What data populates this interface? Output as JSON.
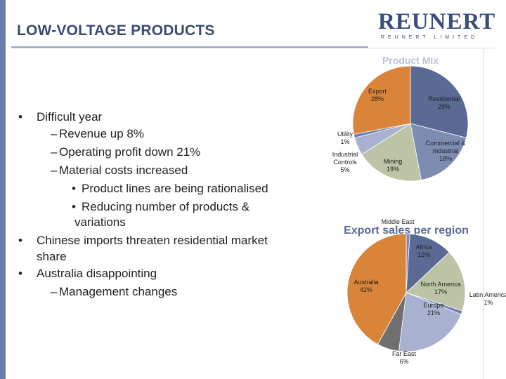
{
  "header": {
    "title": "LOW-VOLTAGE PRODUCTS",
    "logo_main": "REUNERT",
    "logo_sub": "REUNERT LIMITED"
  },
  "bullets": {
    "b1": "Difficult year",
    "b1_1": "Revenue up 8%",
    "b1_2": "Operating profit down 21%",
    "b1_3": "Material costs increased",
    "b1_3_1": "Product lines are being rationalised",
    "b1_3_2a": "Reducing number of products &",
    "b1_3_2b": "variations",
    "b2a": "Chinese imports threaten residential market",
    "b2b": "share",
    "b3": "Australia disappointing",
    "b3_1": "Management changes",
    "marker_main": "•",
    "marker_sub": "–",
    "marker_subsub": "•"
  },
  "chart_data": [
    {
      "type": "pie",
      "title": "Product Mix",
      "slices": [
        {
          "name": "Residential",
          "value": 29,
          "label": "29%",
          "color": "#5a6a95"
        },
        {
          "name": "Commercial & Industrial",
          "value": 18,
          "label": "18%",
          "color": "#7d8db2"
        },
        {
          "name": "Mining",
          "value": 19,
          "label": "19%",
          "color": "#bcc4a5"
        },
        {
          "name": "Industrial Controls",
          "value": 5,
          "label": "5%",
          "color": "#a8b1cf"
        },
        {
          "name": "Utility",
          "value": 1,
          "label": "1%",
          "color": "#6a7eb5"
        },
        {
          "name": "Export",
          "value": 28,
          "label": "28%",
          "color": "#d98439"
        }
      ]
    },
    {
      "type": "pie",
      "title": "Export sales per region",
      "slices": [
        {
          "name": "Middle East",
          "value": 1,
          "label": "",
          "color": "#7d8db2"
        },
        {
          "name": "Africa",
          "value": 12,
          "label": "12%",
          "color": "#5a6a95"
        },
        {
          "name": "North America",
          "value": 17,
          "label": "17%",
          "color": "#bcc4a5"
        },
        {
          "name": "Latin America",
          "value": 1,
          "label": "1%",
          "color": "#6a7eb5"
        },
        {
          "name": "Europe",
          "value": 21,
          "label": "21%",
          "color": "#a8b1cf"
        },
        {
          "name": "Far East",
          "value": 6,
          "label": "6%",
          "color": "#6f6f6f"
        },
        {
          "name": "Australia",
          "value": 42,
          "label": "42%",
          "color": "#d98439"
        }
      ]
    }
  ]
}
